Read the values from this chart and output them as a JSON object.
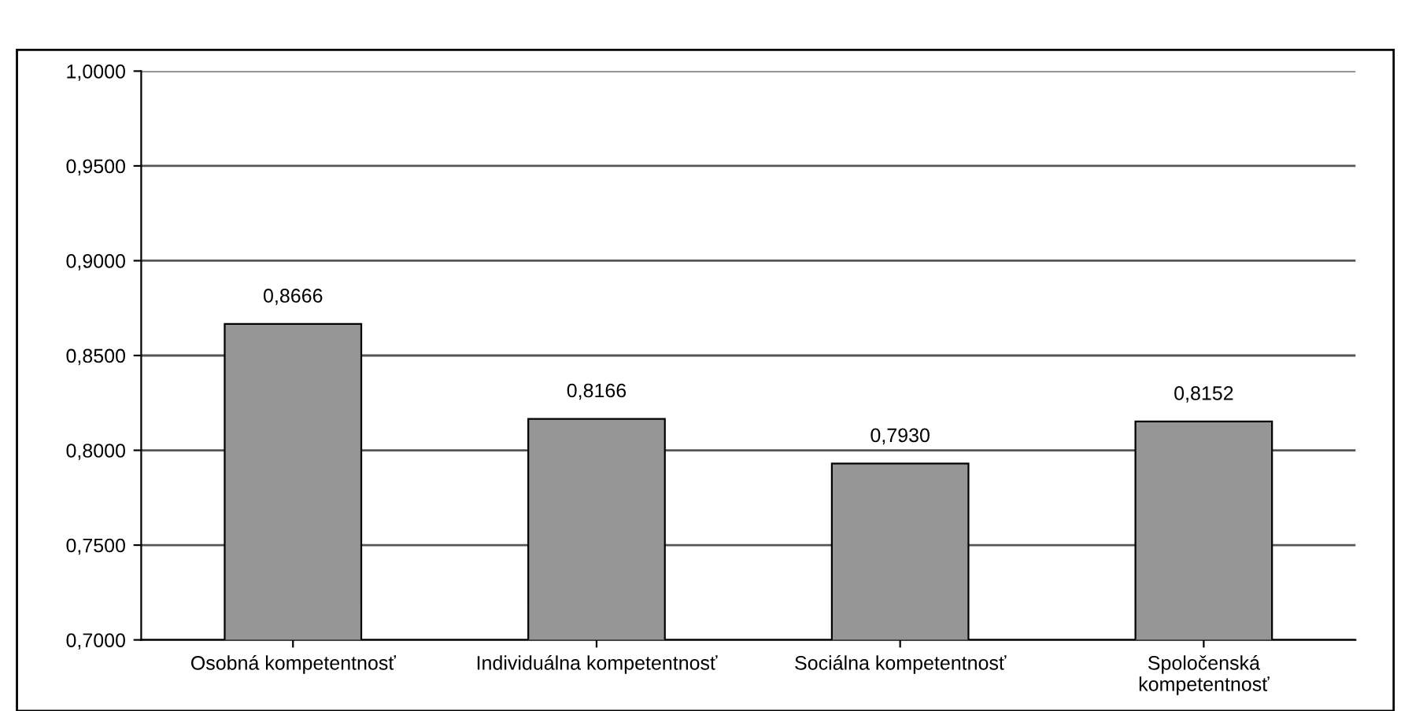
{
  "chart_data": {
    "type": "bar",
    "categories": [
      "Osobná kompetentnosť",
      "Individuálna kompetentnosť",
      "Sociálna kompetentnosť",
      "Spoločenská\nkompetentnosť"
    ],
    "values": [
      0.8666,
      0.8166,
      0.793,
      0.8152
    ],
    "value_labels": [
      "0,8666",
      "0,8166",
      "0,7930",
      "0,8152"
    ],
    "color": "#969696",
    "ylim": [
      0.7,
      1.0
    ],
    "yticks": [
      {
        "value": 0.7,
        "label": "0,7000"
      },
      {
        "value": 0.75,
        "label": "0,7500"
      },
      {
        "value": 0.8,
        "label": "0,8000"
      },
      {
        "value": 0.85,
        "label": "0,8500"
      },
      {
        "value": 0.9,
        "label": "0,9000"
      },
      {
        "value": 0.95,
        "label": "0,9500"
      },
      {
        "value": 1.0,
        "label": "1,0000"
      }
    ],
    "grid": "y",
    "legend": false
  }
}
